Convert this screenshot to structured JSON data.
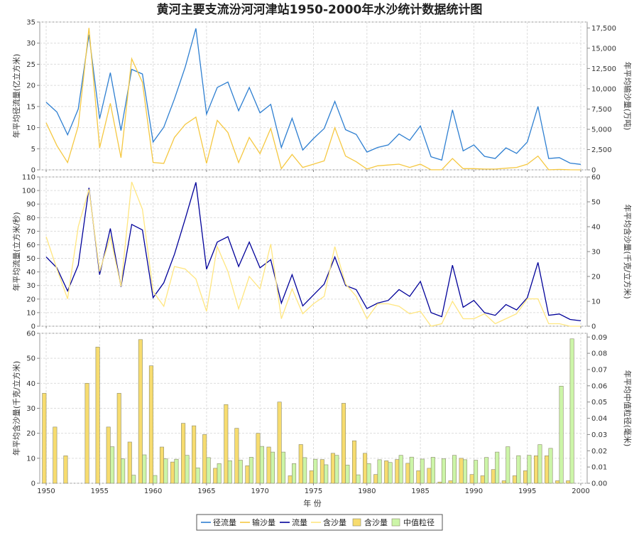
{
  "chart_data": {
    "type": "combined",
    "title": "黄河主要支流汾河河津站1950-2000年水沙统计数据统计图",
    "xlabel": "年 份",
    "x": [
      1950,
      1951,
      1952,
      1953,
      1954,
      1955,
      1956,
      1957,
      1958,
      1959,
      1960,
      1961,
      1962,
      1963,
      1964,
      1965,
      1966,
      1967,
      1968,
      1969,
      1970,
      1971,
      1972,
      1973,
      1974,
      1975,
      1976,
      1977,
      1978,
      1979,
      1980,
      1981,
      1982,
      1983,
      1984,
      1985,
      1986,
      1987,
      1988,
      1989,
      1990,
      1991,
      1992,
      1993,
      1994,
      1995,
      1996,
      1997,
      1998,
      1999,
      2000
    ],
    "xticks": [
      "1950",
      "1955",
      "1960",
      "1965",
      "1970",
      "1975",
      "1980",
      "1985",
      "1990",
      "1995",
      "2000"
    ],
    "panels": [
      {
        "ylabel_left": "年平均径流量(亿立方米)",
        "ylabel_right": "年平均输沙量(万吨)",
        "ylim_left": [
          0,
          35
        ],
        "ylim_right": [
          0,
          18230
        ],
        "yticks_left": [
          "0",
          "5",
          "10",
          "15",
          "20",
          "25",
          "30",
          "35"
        ],
        "yticks_right": [
          "0",
          "2,500",
          "5,000",
          "7,500",
          "10,000",
          "12,500",
          "15,000",
          "17,500"
        ],
        "series": [
          {
            "name": "径流量",
            "axis": "left",
            "style": "line",
            "color": "#2e7fd1",
            "values": [
              16.0,
              13.7,
              8.3,
              14.4,
              32.0,
              12.1,
              23.0,
              9.3,
              23.8,
              22.7,
              6.6,
              10.1,
              16.8,
              24.3,
              33.5,
              13.2,
              19.5,
              20.8,
              14.0,
              19.5,
              13.5,
              15.5,
              5.3,
              12.2,
              4.7,
              7.4,
              9.8,
              16.2,
              9.5,
              8.4,
              4.2,
              5.3,
              5.9,
              8.5,
              7.0,
              10.4,
              3.1,
              2.3,
              14.2,
              4.5,
              5.9,
              3.2,
              2.7,
              5.2,
              3.9,
              6.6,
              15.0,
              2.7,
              2.9,
              1.6,
              1.3
            ]
          },
          {
            "name": "输沙量",
            "axis": "right",
            "style": "line",
            "color": "#f5c842",
            "values": [
              5800,
              3000,
              900,
              5400,
              17500,
              2700,
              8200,
              1500,
              13700,
              10800,
              900,
              800,
              4000,
              5600,
              6500,
              800,
              6100,
              4600,
              900,
              4000,
              2000,
              5100,
              150,
              1900,
              300,
              700,
              1100,
              5200,
              1700,
              1000,
              100,
              500,
              600,
              700,
              300,
              700,
              10,
              20,
              1400,
              150,
              150,
              100,
              100,
              200,
              300,
              700,
              1700,
              10,
              50,
              5,
              0
            ]
          }
        ]
      },
      {
        "ylabel_left": "年平均流量(立方米/秒)",
        "ylabel_right": "年平均含沙量(千克/立方米)",
        "ylim_left": [
          0,
          110
        ],
        "ylim_right": [
          0,
          60
        ],
        "yticks_left": [
          "0",
          "10",
          "20",
          "30",
          "40",
          "50",
          "60",
          "70",
          "80",
          "90",
          "100",
          "110"
        ],
        "yticks_right": [
          "0",
          "10",
          "20",
          "30",
          "40",
          "50",
          "60"
        ],
        "series": [
          {
            "name": "流量",
            "axis": "left",
            "style": "line",
            "color": "#000099",
            "values": [
              51,
              43,
              26,
              45,
              102,
              38,
              72,
              29,
              75,
              71,
              21,
              32,
              53,
              79,
              106,
              42,
              62,
              66,
              44,
              62,
              43,
              49,
              17,
              38,
              15,
              23,
              31,
              51,
              30,
              27,
              13,
              17,
              19,
              27,
              22,
              33,
              10,
              7,
              45,
              14,
              19,
              10,
              8,
              16,
              12,
              21,
              47,
              8,
              9,
              5,
              4
            ]
          },
          {
            "name": "含沙量",
            "axis": "right",
            "style": "line",
            "color": "#ffe680",
            "values": [
              36,
              23,
              11,
              40,
              55,
              22,
              36,
              16,
              58,
              47,
              14,
              8,
              24,
              23,
              19,
              6,
              32,
              22,
              7,
              20,
              15,
              33,
              3,
              15,
              5,
              9,
              12,
              32,
              17,
              12,
              3,
              9,
              9,
              8,
              5,
              6,
              0,
              1,
              10,
              3,
              3,
              5,
              1,
              3,
              5,
              11,
              11,
              1,
              1,
              0,
              0
            ]
          }
        ]
      },
      {
        "ylabel_left": "年平均含沙量(千克/立方米)",
        "ylabel_right": "年平均中值粒径(毫米)",
        "ylim_left": [
          0,
          60
        ],
        "ylim_right": [
          0,
          0.0923
        ],
        "yticks_left": [
          "0",
          "10",
          "20",
          "30",
          "40",
          "50",
          "60"
        ],
        "yticks_right": [
          "0.00",
          "0.01",
          "0.02",
          "0.03",
          "0.04",
          "0.05",
          "0.06",
          "0.07",
          "0.08",
          "0.09"
        ],
        "series": [
          {
            "name": "含沙量",
            "axis": "left",
            "style": "bar",
            "color": "#f7dc6f",
            "values": [
              36,
              22.5,
              11,
              0,
              40,
              54.5,
              22.5,
              36,
              16.5,
              57.5,
              47,
              14.5,
              8.5,
              24,
              23,
              19.5,
              6,
              31.5,
              22,
              7,
              20,
              14.5,
              32.5,
              3,
              15.5,
              5,
              9.5,
              12,
              32,
              17,
              12,
              3.5,
              9,
              9.5,
              8,
              5,
              6,
              0.5,
              1,
              10,
              3.5,
              3,
              5.5,
              1,
              3,
              5,
              11,
              11,
              1,
              1,
              0
            ]
          },
          {
            "name": "中值粒径",
            "axis": "right",
            "style": "bar",
            "color": "#ccf5a8",
            "values": [
              null,
              null,
              null,
              null,
              null,
              null,
              0.0225,
              0.015,
              0.005,
              0.0175,
              0.0048,
              0.015,
              0.0148,
              0.0172,
              0.0095,
              0.0158,
              0.0121,
              0.0139,
              0.0142,
              0.016,
              0.0227,
              0.0192,
              0.0192,
              0.0121,
              0.0158,
              0.0148,
              0.0114,
              0.0172,
              0.0112,
              0.0052,
              0.0121,
              0.0145,
              0.0128,
              0.0172,
              0.0161,
              0.0149,
              0.016,
              0.0151,
              0.0172,
              0.0145,
              0.0142,
              0.0159,
              0.0192,
              0.0225,
              0.017,
              0.0172,
              0.0238,
              0.0215,
              0.0598,
              0.0889,
              null
            ]
          }
        ]
      }
    ],
    "legend": {
      "placement": "bottom",
      "items": [
        {
          "label": "径流量",
          "kind": "line",
          "color": "#2e7fd1"
        },
        {
          "label": "输沙量",
          "kind": "line",
          "color": "#f5c842"
        },
        {
          "label": "流量",
          "kind": "line",
          "color": "#000099"
        },
        {
          "label": "含沙量",
          "kind": "line",
          "color": "#ffe680"
        },
        {
          "label": "含沙量",
          "kind": "box",
          "color": "#f7dc6f"
        },
        {
          "label": "中值粒径",
          "kind": "box",
          "color": "#ccf5a8"
        }
      ]
    },
    "grid": true
  }
}
